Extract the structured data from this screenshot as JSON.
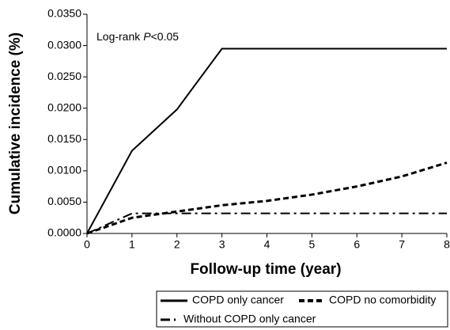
{
  "chart_data": {
    "type": "line",
    "annotation": [
      "Log-rank",
      "P",
      "<0.05"
    ],
    "x_label": "Follow-up time (year)",
    "y_label": "Cumulative incidence (%)",
    "x": [
      0,
      1,
      2,
      3,
      4,
      5,
      6,
      7,
      8
    ],
    "series": [
      {
        "name": "COPD only cancer",
        "color": "#000000",
        "line_style": "solid",
        "values": [
          0,
          0.0132,
          0.0198,
          0.0295,
          0.0295,
          0.0295,
          0.0295,
          0.0295,
          0.0295
        ]
      },
      {
        "name": "COPD no comorbidity",
        "color": "#000000",
        "line_style": "dashed",
        "values": [
          0,
          0.0025,
          0.0035,
          0.0045,
          0.0052,
          0.0062,
          0.0075,
          0.0091,
          0.0113
        ]
      },
      {
        "name": "Without COPD only cancer",
        "color": "#000000",
        "line_style": "dashdot",
        "values": [
          0,
          0.0032,
          0.0032,
          0.0032,
          0.0032,
          0.0032,
          0.0032,
          0.0032,
          0.0032
        ]
      }
    ],
    "xlim": [
      0,
      8
    ],
    "xticks": [
      0,
      1,
      2,
      3,
      4,
      5,
      6,
      7,
      8
    ],
    "ylim": [
      0,
      0.035
    ],
    "yticks": [
      {
        "value": 0,
        "label": "0.0000"
      },
      {
        "value": 0.005,
        "label": "0.0050"
      },
      {
        "value": 0.01,
        "label": "0.0100"
      },
      {
        "value": 0.015,
        "label": "0.0150"
      },
      {
        "value": 0.02,
        "label": "0.0200"
      },
      {
        "value": 0.025,
        "label": "0.0250"
      },
      {
        "value": 0.03,
        "label": "0.0300"
      },
      {
        "value": 0.035,
        "label": "0.0350"
      }
    ],
    "grid": false
  }
}
